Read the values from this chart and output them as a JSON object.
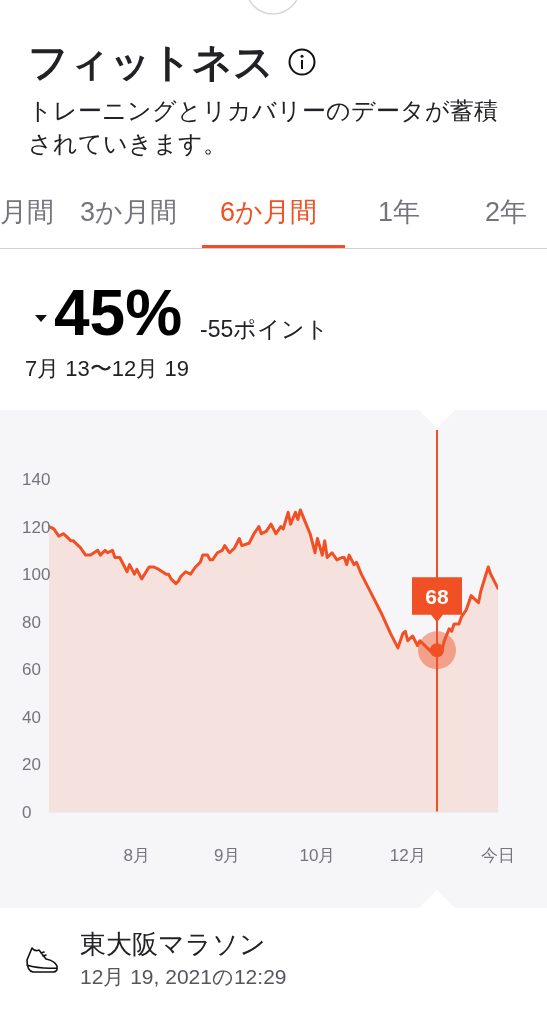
{
  "chart_data": {
    "type": "area",
    "title": "フィットネス",
    "subtitle": "トレーニングとリカバリーのデータが蓄積されていきます。",
    "x": [
      "2021-07-13",
      "2021-07-15",
      "2021-07-17",
      "2021-07-19",
      "2021-07-20",
      "2021-07-22",
      "2021-07-23",
      "2021-07-25",
      "2021-07-26",
      "2021-07-28",
      "2021-07-30",
      "2021-08-02",
      "2021-08-03",
      "2021-08-05",
      "2021-08-06",
      "2021-08-08",
      "2021-08-09",
      "2021-08-11",
      "2021-08-13",
      "2021-08-14",
      "2021-08-15",
      "2021-08-17",
      "2021-08-18",
      "2021-08-20",
      "2021-08-23",
      "2021-08-25",
      "2021-08-27",
      "2021-08-30",
      "2021-08-31",
      "2021-09-01",
      "2021-09-03",
      "2021-09-04",
      "2021-09-05",
      "2021-09-07",
      "2021-09-09",
      "2021-09-11",
      "2021-09-13",
      "2021-09-14",
      "2021-09-16",
      "2021-09-17",
      "2021-09-18",
      "2021-09-20",
      "2021-09-22",
      "2021-09-23",
      "2021-09-25",
      "2021-09-27",
      "2021-09-29",
      "2021-09-30",
      "2021-10-03",
      "2021-10-05",
      "2021-10-07",
      "2021-10-08",
      "2021-10-10",
      "2021-10-12",
      "2021-10-14",
      "2021-10-16",
      "2021-10-17",
      "2021-10-19",
      "2021-10-20",
      "2021-10-22",
      "2021-10-23",
      "2021-10-24",
      "2021-10-26",
      "2021-10-28",
      "2021-10-30",
      "2021-10-31",
      "2021-11-02",
      "2021-11-03",
      "2021-11-04",
      "2021-11-06",
      "2021-11-08",
      "2021-11-10",
      "2021-11-11",
      "2021-11-12",
      "2021-11-13",
      "2021-11-15",
      "2021-11-16",
      "2021-11-18",
      "2021-11-22",
      "2021-11-26",
      "2021-11-30",
      "2021-12-03",
      "2021-12-05",
      "2021-12-06",
      "2021-12-07",
      "2021-12-09",
      "2021-12-11",
      "2021-12-12",
      "2021-12-15",
      "2021-12-17",
      "2021-12-19",
      "2021-12-21",
      "2021-12-22",
      "2021-12-24",
      "2021-12-25",
      "2021-12-26",
      "2021-12-28",
      "2021-12-29",
      "2021-12-31",
      "2022-01-01",
      "2022-01-02",
      "2022-01-04",
      "2022-01-05",
      "2022-01-06",
      "2022-01-09",
      "2022-01-10",
      "2022-01-13"
    ],
    "series": [
      {
        "color": "#f05023",
        "values": [
          120,
          119,
          116,
          117,
          116,
          114,
          114,
          112,
          111,
          108,
          108,
          110,
          108,
          110,
          109,
          110,
          107,
          107,
          103,
          101,
          104,
          100,
          102,
          98,
          103,
          103,
          102,
          100,
          100,
          98,
          96,
          97,
          99,
          101,
          100,
          103,
          105,
          108,
          108,
          106,
          106,
          109,
          110,
          112,
          109,
          111,
          115,
          112,
          113,
          117,
          120,
          117,
          118,
          121,
          117,
          120,
          119,
          126,
          121,
          126,
          123,
          127,
          122,
          117,
          109,
          115,
          108,
          114,
          107,
          109,
          106,
          107,
          107,
          104,
          108,
          104,
          105,
          100,
          92,
          84,
          75,
          69,
          75,
          76,
          72,
          74,
          70,
          72,
          69,
          67,
          68,
          68,
          72,
          77,
          76,
          79,
          79,
          82,
          85,
          88,
          91,
          89,
          88,
          93,
          103,
          100,
          94
        ]
      }
    ],
    "xlim": [
      "2021-07-13",
      "2022-01-13"
    ],
    "xticks": [
      {
        "value": "2021-08-18",
        "label": "8月"
      },
      {
        "value": "2021-09-24",
        "label": "9月"
      },
      {
        "value": "2021-10-31",
        "label": "10月"
      },
      {
        "value": "2021-12-07",
        "label": "12月"
      },
      {
        "value": "2022-01-13",
        "label": "今日"
      }
    ],
    "ylim": [
      0,
      140
    ],
    "yticks": [
      0,
      20,
      40,
      60,
      80,
      100,
      120,
      140
    ],
    "ref_lines": [
      {
        "axis": "x",
        "value": "2021-12-19",
        "color": "#f05023"
      }
    ],
    "annotations": [
      "月間",
      "3か月間",
      "6か月間",
      "1年",
      "2年",
      "45%",
      "-55ポイント",
      "7月 13〜12月 19",
      {
        "text": "68",
        "x": "2021-12-19",
        "y": 68
      },
      "東大阪マラソン",
      "12月 19, 2021の12:29"
    ]
  }
}
